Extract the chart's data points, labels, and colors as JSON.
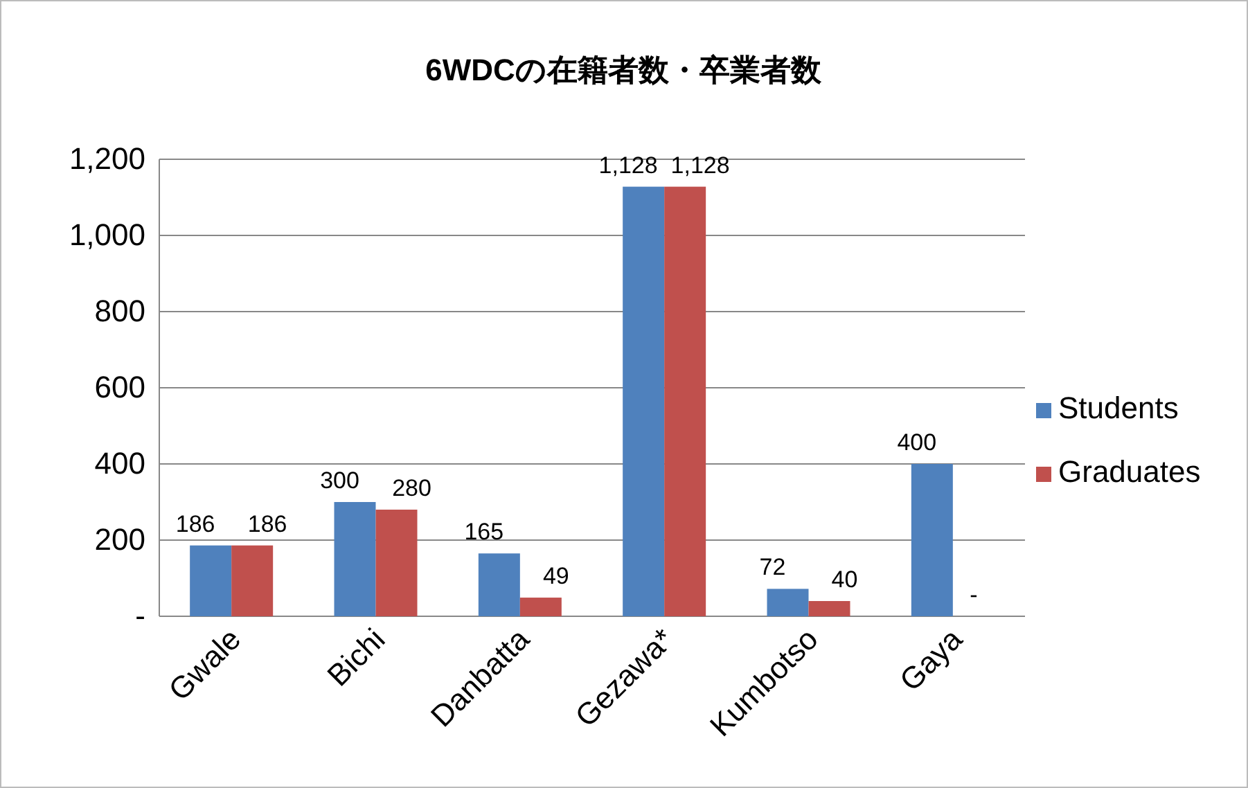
{
  "chart_data": {
    "type": "bar",
    "title": "6WDCの在籍者数・卒業者数",
    "categories": [
      "Gwale",
      "Bichi",
      "Danbatta",
      "Gezawa*",
      "Kumbotso",
      "Gaya"
    ],
    "series": [
      {
        "name": "Students",
        "color": "#4f81bd",
        "values": [
          186,
          300,
          165,
          1128,
          72,
          400
        ],
        "value_labels": [
          "186",
          "300",
          "165",
          "1,128",
          "72",
          "400"
        ]
      },
      {
        "name": "Graduates",
        "color": "#c0504d",
        "values": [
          186,
          280,
          49,
          1128,
          40,
          0
        ],
        "value_labels": [
          "186",
          "280",
          "49",
          "1,128",
          "40",
          "-"
        ]
      }
    ],
    "ylim": [
      0,
      1200
    ],
    "yticks": [
      {
        "value": 0,
        "label": "-"
      },
      {
        "value": 200,
        "label": "200"
      },
      {
        "value": 400,
        "label": "400"
      },
      {
        "value": 600,
        "label": "600"
      },
      {
        "value": 800,
        "label": "800"
      },
      {
        "value": 1000,
        "label": "1,000"
      },
      {
        "value": 1200,
        "label": "1,200"
      }
    ],
    "grid": "y",
    "legend": "right"
  }
}
